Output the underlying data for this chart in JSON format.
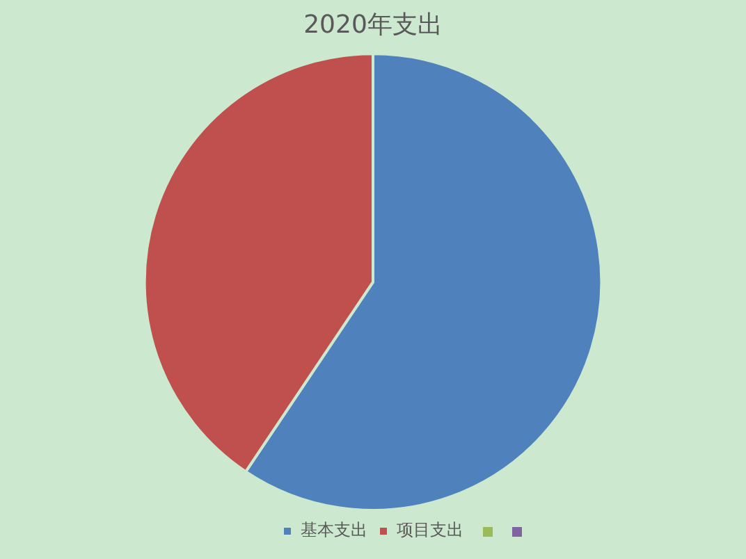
{
  "chart_data": {
    "type": "pie",
    "title": "2020年支出",
    "categories": [
      "基本支出",
      "项目支出",
      null,
      null
    ],
    "values": [
      59.4,
      40.6,
      0,
      0
    ],
    "colors": [
      "#4f81bd",
      "#c0504d",
      "#9bbb59",
      "#8064a2"
    ],
    "legend": "bottom"
  }
}
